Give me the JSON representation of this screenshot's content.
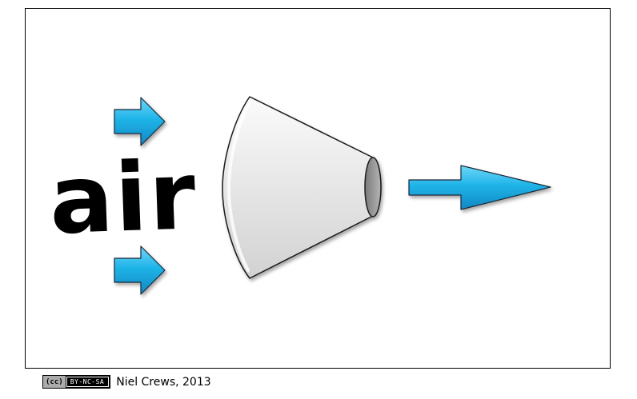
{
  "diagram": {
    "label": "air",
    "colors": {
      "arrow_fill": "#1fb4e8",
      "arrow_stroke": "#1a2a3a",
      "nozzle_fill": "#ebebeb",
      "nozzle_opening": "#9a9a9a",
      "frame_border": "#000000"
    },
    "icons": {
      "inflow_top": "arrow-right-icon",
      "inflow_bottom": "arrow-right-icon",
      "outflow": "arrow-right-long-icon",
      "nozzle": "cone-nozzle-icon"
    }
  },
  "footer": {
    "license_left": "(cc)",
    "license_right": "BY-NC-SA",
    "credit": "Niel Crews, 2013"
  }
}
